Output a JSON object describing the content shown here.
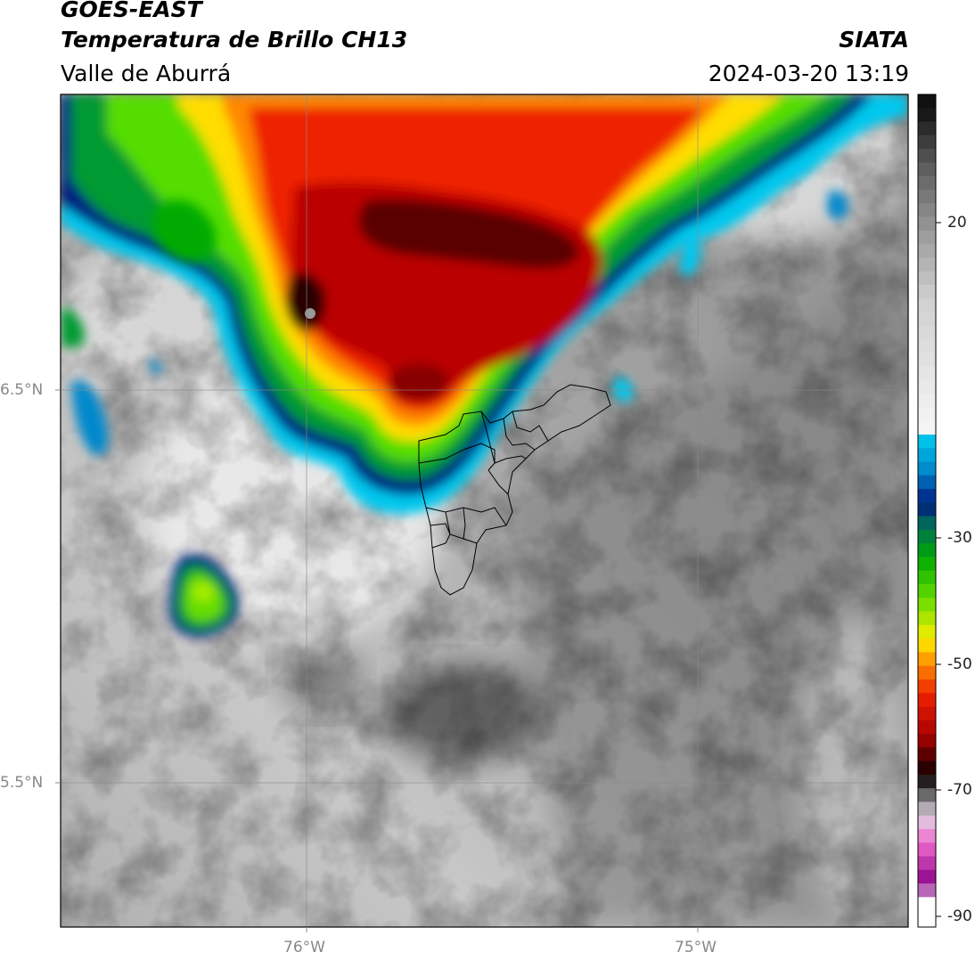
{
  "header": {
    "satellite": "GOES-EAST",
    "product": "Temperatura de Brillo CH13",
    "region": "Valle de Aburrá",
    "source": "SIATA",
    "datetime": "2024-03-20 13:19"
  },
  "axes": {
    "lat_ticks": [
      "6.5°N",
      "5.5°N"
    ],
    "lon_ticks": [
      "76°W",
      "75°W"
    ]
  },
  "colorbar": {
    "tick_labels": [
      "20",
      "-30",
      "-50",
      "-70",
      "-90"
    ],
    "stops": [
      {
        "value": 28,
        "color": "#111111"
      },
      {
        "value": 20,
        "color": "#5a5a5a"
      },
      {
        "value": 10,
        "color": "#9a9a9a"
      },
      {
        "value": 0,
        "color": "#d0d0d0"
      },
      {
        "value": -19,
        "color": "#f5f5f5"
      },
      {
        "value": -20,
        "color": "#00ccee"
      },
      {
        "value": -25,
        "color": "#0088cc"
      },
      {
        "value": -30,
        "color": "#001a80"
      },
      {
        "value": -33,
        "color": "#006a5a"
      },
      {
        "value": -38,
        "color": "#00aa00"
      },
      {
        "value": -44,
        "color": "#66dd00"
      },
      {
        "value": -50,
        "color": "#ffee00"
      },
      {
        "value": -53,
        "color": "#ff9900"
      },
      {
        "value": -58,
        "color": "#ee2200"
      },
      {
        "value": -64,
        "color": "#aa0000"
      },
      {
        "value": -70,
        "color": "#0a0000"
      },
      {
        "value": -73,
        "color": "#707070"
      },
      {
        "value": -76,
        "color": "#e0d0e0"
      },
      {
        "value": -80,
        "color": "#ee66cc"
      },
      {
        "value": -86,
        "color": "#880088"
      },
      {
        "value": -88,
        "color": "#ffffff"
      }
    ]
  },
  "colors": {
    "grid": "#8a8a8a",
    "border": "#000000",
    "boundary": "#000000"
  }
}
